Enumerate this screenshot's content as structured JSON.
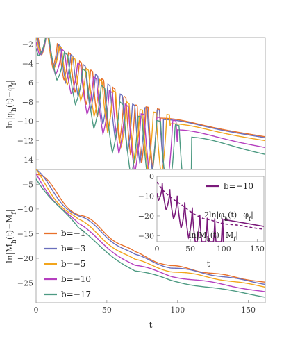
{
  "chart_data": [
    {
      "type": "line",
      "panel": "top",
      "xlim": [
        0,
        162
      ],
      "ylim": [
        -15,
        -1.3
      ],
      "yticks": [
        -2,
        -4,
        -6,
        -8,
        -10,
        -12,
        -14
      ],
      "ylabel": "ln|φ_h(t)−φ_f|",
      "series": [
        {
          "name": "b=−1",
          "color": "#e8702a",
          "start": -1.1,
          "omega": 0.4,
          "decay": [
            [
              0,
              -1.1
            ],
            [
              70,
              -9.2
            ],
            [
              162,
              -11.6
            ]
          ],
          "dip": 1.8,
          "dipEnd": 88
        },
        {
          "name": "b=−3",
          "color": "#6a6fbd",
          "start": -1.1,
          "omega": 0.36,
          "decay": [
            [
              0,
              -1.1
            ],
            [
              70,
              -9.3
            ],
            [
              162,
              -11.7
            ]
          ],
          "dip": 1.8,
          "dipEnd": 90
        },
        {
          "name": "b=−5",
          "color": "#f2a51c",
          "start": -1.1,
          "omega": 0.33,
          "decay": [
            [
              0,
              -1.1
            ],
            [
              70,
              -9.6
            ],
            [
              162,
              -12.0
            ]
          ],
          "dip": 1.8,
          "dipEnd": 95
        },
        {
          "name": "b=−10",
          "color": "#b53fbf",
          "start": -1.1,
          "omega": 0.28,
          "decay": [
            [
              0,
              -1.1
            ],
            [
              70,
              -10.0
            ],
            [
              162,
              -12.7
            ]
          ],
          "dip": 2.0,
          "dipEnd": 100
        },
        {
          "name": "b=−17",
          "color": "#4d9a82",
          "start": -1.1,
          "omega": 0.24,
          "decay": [
            [
              0,
              -1.1
            ],
            [
              70,
              -10.3
            ],
            [
              162,
              -13.4
            ]
          ],
          "dip": 2.2,
          "dipEnd": 110
        }
      ]
    },
    {
      "type": "line",
      "panel": "bottom",
      "xlim": [
        0,
        162
      ],
      "ylim": [
        -29,
        -2
      ],
      "xticks": [
        0,
        50,
        100,
        150
      ],
      "yticks": [
        -5,
        -10,
        -15,
        -20,
        -25
      ],
      "xlabel": "t",
      "ylabel": "ln|M_h(t)−M_f|",
      "legend": "left",
      "series": [
        {
          "name": "b=−1",
          "color": "#e8702a",
          "decay": [
            [
              0,
              -3
            ],
            [
              30,
              -11
            ],
            [
              70,
              -19
            ],
            [
              95,
              -21.5
            ],
            [
              162,
              -24.9
            ]
          ]
        },
        {
          "name": "b=−3",
          "color": "#6a6fbd",
          "decay": [
            [
              0,
              -3
            ],
            [
              30,
              -11.5
            ],
            [
              70,
              -19.5
            ],
            [
              95,
              -21.8
            ],
            [
              162,
              -25.2
            ]
          ]
        },
        {
          "name": "b=−5",
          "color": "#f2a51c",
          "decay": [
            [
              0,
              -3
            ],
            [
              30,
              -12.5
            ],
            [
              70,
              -20.5
            ],
            [
              95,
              -22.5
            ],
            [
              162,
              -25.8
            ]
          ]
        },
        {
          "name": "b=−10",
          "color": "#b53fbf",
          "decay": [
            [
              0,
              -3
            ],
            [
              30,
              -13.5
            ],
            [
              70,
              -21.5
            ],
            [
              95,
              -23.5
            ],
            [
              162,
              -26.8
            ]
          ]
        },
        {
          "name": "b=−17",
          "color": "#4d9a82",
          "decay": [
            [
              0,
              -3
            ],
            [
              30,
              -14.5
            ],
            [
              70,
              -22.5
            ],
            [
              95,
              -24.5
            ],
            [
              162,
              -27.8
            ]
          ]
        }
      ]
    },
    {
      "type": "line",
      "panel": "inset",
      "xlim": [
        0,
        160
      ],
      "ylim": [
        -33,
        0
      ],
      "xticks": [
        0,
        50,
        100,
        150
      ],
      "yticks": [
        0,
        -10,
        -20,
        -30
      ],
      "xlabel": "t",
      "legend": "top-right",
      "legend_entry": "b=−10",
      "color": "#7b1a7b",
      "annotations": [
        "2ln|φ_h(t)−φ_f|",
        "ln|M_h(t)−M_f|"
      ],
      "series": [
        {
          "name": "b=−10",
          "style": "solid",
          "decay": [
            [
              0,
              -2.2
            ],
            [
              70,
              -20
            ],
            [
              162,
              -25.4
            ]
          ],
          "dip": 4,
          "dipEnd": 100,
          "omega": 0.28
        },
        {
          "name": "",
          "style": "dashed",
          "decay": [
            [
              0,
              -3
            ],
            [
              30,
              -13.5
            ],
            [
              70,
              -21.5
            ],
            [
              95,
              -23.5
            ],
            [
              162,
              -26.8
            ]
          ]
        }
      ]
    }
  ]
}
